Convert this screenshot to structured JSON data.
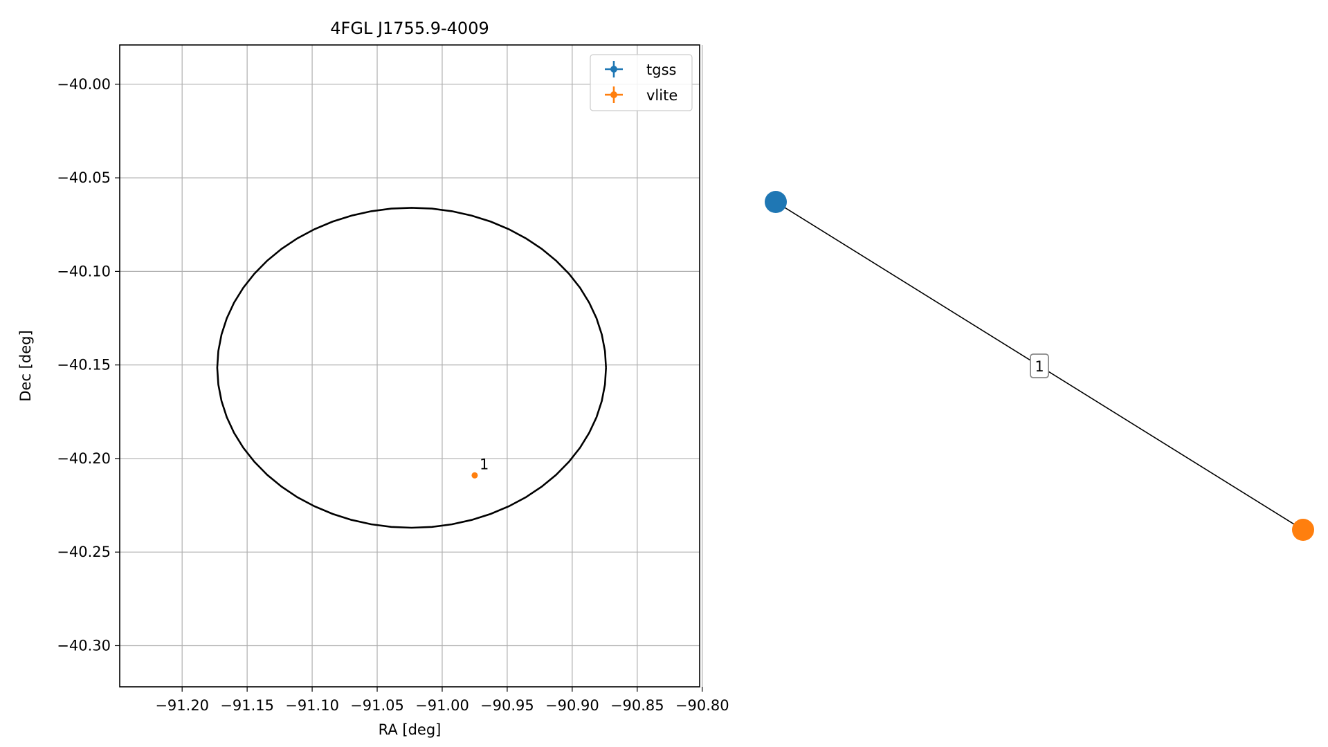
{
  "chart_data": [
    {
      "type": "scatter",
      "title": "4FGL J1755.9-4009",
      "xlabel": "RA [deg]",
      "ylabel": "Dec [deg]",
      "xlim": [
        -91.248,
        -90.802
      ],
      "ylim": [
        -40.322,
        -39.979
      ],
      "xticks": [
        -91.2,
        -91.15,
        -91.1,
        -91.05,
        -91.0,
        -90.95,
        -90.9,
        -90.85,
        -90.8
      ],
      "xtick_labels": [
        "−91.20",
        "−91.15",
        "−91.10",
        "−91.05",
        "−91.00",
        "−90.95",
        "−90.90",
        "−90.85",
        "−90.80"
      ],
      "yticks": [
        -40.0,
        -40.05,
        -40.1,
        -40.15,
        -40.2,
        -40.25,
        -40.3
      ],
      "ytick_labels": [
        "−40.00",
        "−40.05",
        "−40.10",
        "−40.15",
        "−40.20",
        "−40.25",
        "−40.30"
      ],
      "grid": true,
      "legend_position": "top-right",
      "ellipse": {
        "ra_min": -91.173,
        "ra_max": -90.874,
        "dec_min": -40.237,
        "dec_max": -40.066,
        "color": "#000000"
      },
      "series": [
        {
          "name": "tgss",
          "color": "#1f77b4",
          "points": []
        },
        {
          "name": "vlite",
          "color": "#ff7f0e",
          "points": [
            {
              "x": -90.975,
              "y": -40.209,
              "label": "1"
            }
          ]
        }
      ]
    },
    {
      "type": "network",
      "nodes": [
        {
          "id": "tgss",
          "color": "#1f77b4"
        },
        {
          "id": "vlite",
          "color": "#ff7f0e"
        }
      ],
      "edges": [
        {
          "source": "tgss",
          "target": "vlite",
          "label": "1"
        }
      ]
    }
  ]
}
